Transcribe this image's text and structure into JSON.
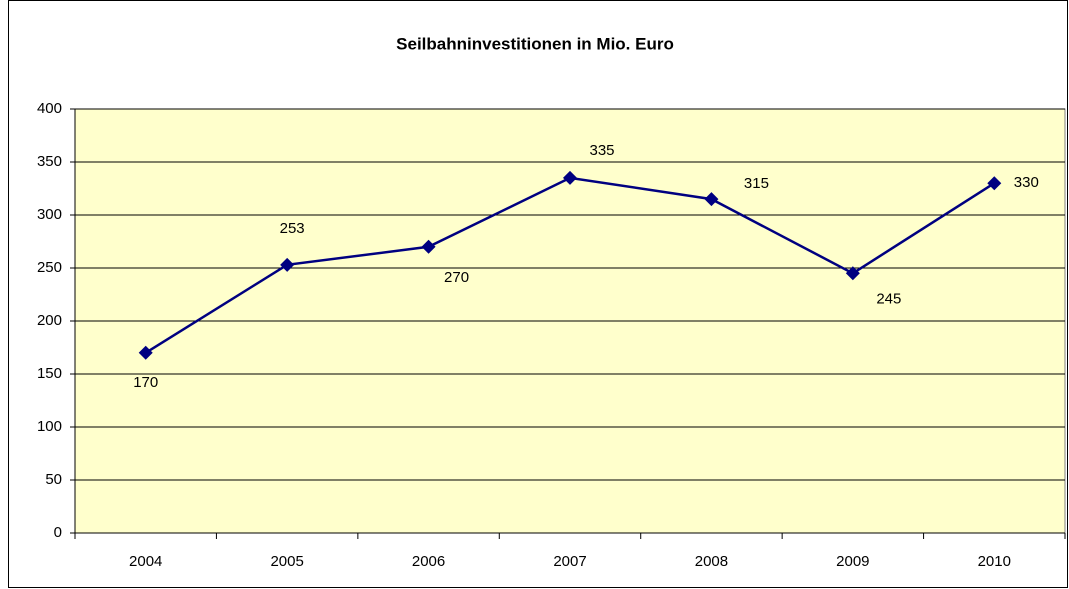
{
  "chart_data": {
    "type": "line",
    "title": "Seilbahninvestitionen in Mio. Euro",
    "categories": [
      "2004",
      "2005",
      "2006",
      "2007",
      "2008",
      "2009",
      "2010"
    ],
    "series": [
      {
        "name": "Seilbahninvestitionen",
        "color": "#000080",
        "values": [
          170,
          253,
          270,
          335,
          315,
          245,
          330
        ]
      }
    ],
    "ylim": [
      0,
      400
    ],
    "yticks": [
      0,
      50,
      100,
      150,
      200,
      250,
      300,
      350,
      400
    ],
    "grid": true,
    "plot_background": "#ffffcc"
  }
}
